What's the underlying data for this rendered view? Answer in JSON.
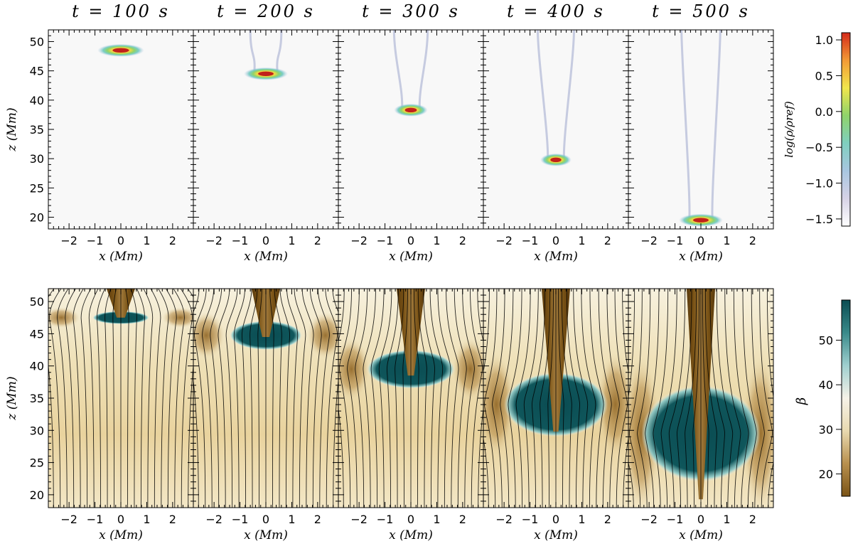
{
  "chart_data": [
    {
      "type": "heatmap",
      "panel_titles": [
        "t = 100 s",
        "t = 200 s",
        "t = 300 s",
        "t = 400 s",
        "t = 500 s"
      ],
      "time_s": [
        100,
        200,
        300,
        400,
        500
      ],
      "xlabel": "x (Mm)",
      "ylabel": "z (Mm)",
      "xlim": [
        -2.8,
        2.8
      ],
      "ylim": [
        18,
        52
      ],
      "xticks": [
        -2,
        -1,
        0,
        1,
        2
      ],
      "yticks": [
        20,
        25,
        30,
        35,
        40,
        45,
        50
      ],
      "colorbar_label": "log(ρ/ρref)",
      "colorbar_range": [
        -1.6,
        1.1
      ],
      "colorbar_ticks": [
        1.0,
        0.5,
        0.0,
        -0.5,
        -1.0,
        -1.5
      ],
      "colorbar_tick_labels": [
        "1.0",
        "0.5",
        "0.0",
        "−0.5",
        "−1.0",
        "−1.5"
      ],
      "colormap": [
        "#ffffff",
        "#d6d2e6",
        "#a8c6e0",
        "#7fcfbf",
        "#8fd36a",
        "#f1e64c",
        "#f29a35",
        "#d42a1a"
      ],
      "condensation_center_z_Mm": [
        48.5,
        44.5,
        38.3,
        29.8,
        19.5
      ],
      "condensation_half_width_Mm": [
        0.9,
        0.85,
        0.65,
        0.6,
        0.85
      ]
    },
    {
      "type": "heatmap",
      "panel_titles": [
        "",
        "",
        "",
        "",
        ""
      ],
      "time_s": [
        100,
        200,
        300,
        400,
        500
      ],
      "xlabel": "x (Mm)",
      "ylabel": "z (Mm)",
      "xlim": [
        -2.8,
        2.8
      ],
      "ylim": [
        18,
        52
      ],
      "xticks": [
        -2,
        -1,
        0,
        1,
        2
      ],
      "yticks": [
        20,
        25,
        30,
        35,
        40,
        45,
        50
      ],
      "colorbar_label": "β",
      "colorbar_range": [
        15,
        59
      ],
      "colorbar_ticks": [
        50,
        40,
        30,
        20
      ],
      "colorbar_tick_labels": [
        "50",
        "40",
        "30",
        "20"
      ],
      "colormap": [
        "#7a5316",
        "#b8904e",
        "#e8d9b0",
        "#f6f2e8",
        "#9fcfcf",
        "#3a8a8a",
        "#0a4c52"
      ],
      "field_lines": true,
      "low_beta_column_bottom_z_Mm": [
        47.5,
        44.5,
        38.5,
        29.8,
        19.3
      ],
      "high_beta_region_z_Mm": [
        [
          46.5,
          48.5
        ],
        [
          42.5,
          47
        ],
        [
          36.5,
          42.5
        ],
        [
          29,
          39
        ],
        [
          22,
          37
        ]
      ]
    }
  ]
}
